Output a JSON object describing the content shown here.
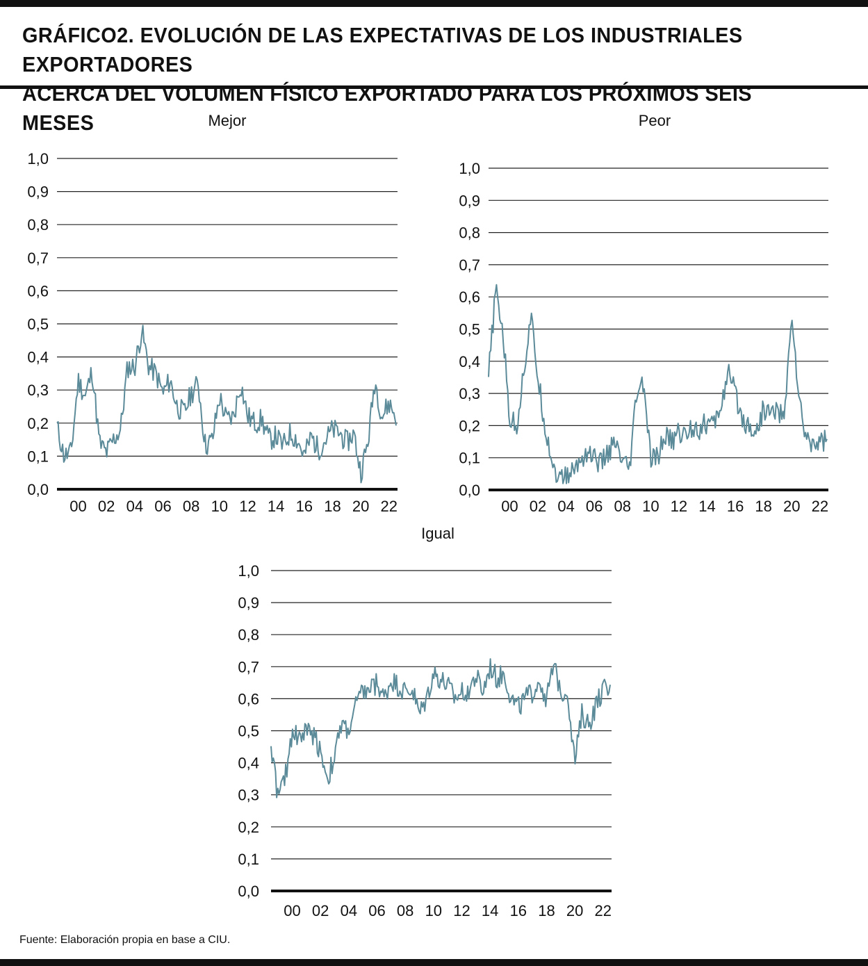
{
  "header": {
    "title_line1": "GRÁFICO2. EVOLUCIÓN DE LAS EXPECTATIVAS DE LOS INDUSTRIALES EXPORTADORES",
    "title_line2": "ACERCA DEL VOLUMEN FÍSICO EXPORTADO PARA LOS PRÓXIMOS SEIS MESES"
  },
  "footer": {
    "source": "Fuente: Elaboración propia en base a CIU."
  },
  "colors": {
    "line": "#5b8a99",
    "grid": "#222222",
    "axis": "#111111"
  },
  "chart_data": [
    {
      "type": "line",
      "title": "Mejor",
      "ylim": [
        0,
        1
      ],
      "yticks": [
        "0,0",
        "0,1",
        "0,2",
        "0,3",
        "0,4",
        "0,5",
        "0,6",
        "0,7",
        "0,8",
        "0,9",
        "1,0"
      ],
      "xticks": [
        "00",
        "02",
        "04",
        "06",
        "08",
        "10",
        "12",
        "14",
        "16",
        "18",
        "20",
        "22"
      ],
      "grid": true,
      "x": [
        1998.5,
        1999,
        1999.5,
        2000,
        2000.5,
        2001,
        2001.5,
        2002,
        2002.5,
        2003,
        2003.5,
        2004,
        2004.5,
        2005,
        2005.5,
        2006,
        2006.5,
        2007,
        2007.5,
        2008,
        2008.5,
        2009,
        2009.5,
        2010,
        2010.5,
        2011,
        2011.5,
        2012,
        2012.5,
        2013,
        2013.5,
        2014,
        2014.5,
        2015,
        2015.5,
        2016,
        2016.5,
        2017,
        2017.5,
        2018,
        2018.5,
        2019,
        2019.5,
        2020,
        2020.5,
        2021,
        2021.5,
        2022,
        2022.5
      ],
      "y": [
        0.19,
        0.1,
        0.11,
        0.33,
        0.28,
        0.36,
        0.14,
        0.11,
        0.15,
        0.18,
        0.37,
        0.37,
        0.48,
        0.37,
        0.35,
        0.29,
        0.33,
        0.25,
        0.23,
        0.29,
        0.32,
        0.13,
        0.15,
        0.28,
        0.21,
        0.22,
        0.32,
        0.22,
        0.2,
        0.21,
        0.15,
        0.16,
        0.13,
        0.17,
        0.15,
        0.1,
        0.16,
        0.12,
        0.15,
        0.18,
        0.17,
        0.14,
        0.17,
        0.05,
        0.14,
        0.33,
        0.22,
        0.26,
        0.22
      ]
    },
    {
      "type": "line",
      "title": "Peor",
      "ylim": [
        0,
        1
      ],
      "yticks": [
        "0,0",
        "0,1",
        "0,2",
        "0,3",
        "0,4",
        "0,5",
        "0,6",
        "0,7",
        "0,8",
        "0,9",
        "1,0"
      ],
      "xticks": [
        "00",
        "02",
        "04",
        "06",
        "08",
        "10",
        "12",
        "14",
        "16",
        "18",
        "20",
        "22"
      ],
      "grid": true,
      "x": [
        1998.5,
        1999,
        1999.5,
        2000,
        2000.5,
        2001,
        2001.5,
        2002,
        2002.5,
        2003,
        2003.5,
        2004,
        2004.5,
        2005,
        2005.5,
        2006,
        2006.5,
        2007,
        2007.5,
        2008,
        2008.5,
        2009,
        2009.5,
        2010,
        2010.5,
        2011,
        2011.5,
        2012,
        2012.5,
        2013,
        2013.5,
        2014,
        2014.5,
        2015,
        2015.5,
        2016,
        2016.5,
        2017,
        2017.5,
        2018,
        2018.5,
        2019,
        2019.5,
        2020,
        2020.5,
        2021,
        2021.5,
        2022,
        2022.5
      ],
      "y": [
        0.35,
        0.62,
        0.5,
        0.22,
        0.2,
        0.37,
        0.54,
        0.35,
        0.2,
        0.09,
        0.03,
        0.04,
        0.06,
        0.09,
        0.12,
        0.1,
        0.08,
        0.12,
        0.14,
        0.08,
        0.06,
        0.3,
        0.33,
        0.09,
        0.1,
        0.17,
        0.15,
        0.18,
        0.17,
        0.2,
        0.19,
        0.21,
        0.2,
        0.27,
        0.36,
        0.3,
        0.22,
        0.2,
        0.18,
        0.25,
        0.24,
        0.25,
        0.22,
        0.56,
        0.28,
        0.16,
        0.15,
        0.15,
        0.16
      ]
    },
    {
      "type": "line",
      "title": "Igual",
      "ylim": [
        0,
        1
      ],
      "yticks": [
        "0,0",
        "0,1",
        "0,2",
        "0,3",
        "0,4",
        "0,5",
        "0,6",
        "0,7",
        "0,8",
        "0,9",
        "1,0"
      ],
      "xticks": [
        "00",
        "02",
        "04",
        "06",
        "08",
        "10",
        "12",
        "14",
        "16",
        "18",
        "20",
        "22"
      ],
      "grid": true,
      "x": [
        1998.5,
        1999,
        1999.5,
        2000,
        2000.5,
        2001,
        2001.5,
        2002,
        2002.5,
        2003,
        2003.5,
        2004,
        2004.5,
        2005,
        2005.5,
        2006,
        2006.5,
        2007,
        2007.5,
        2008,
        2008.5,
        2009,
        2009.5,
        2010,
        2010.5,
        2011,
        2011.5,
        2012,
        2012.5,
        2013,
        2013.5,
        2014,
        2014.5,
        2015,
        2015.5,
        2016,
        2016.5,
        2017,
        2017.5,
        2018,
        2018.5,
        2019,
        2019.5,
        2020,
        2020.5,
        2021,
        2021.5,
        2022,
        2022.5
      ],
      "y": [
        0.46,
        0.29,
        0.35,
        0.5,
        0.48,
        0.5,
        0.49,
        0.44,
        0.35,
        0.42,
        0.52,
        0.5,
        0.58,
        0.62,
        0.63,
        0.65,
        0.6,
        0.66,
        0.64,
        0.62,
        0.63,
        0.55,
        0.6,
        0.68,
        0.66,
        0.64,
        0.6,
        0.62,
        0.63,
        0.67,
        0.62,
        0.7,
        0.66,
        0.68,
        0.6,
        0.57,
        0.6,
        0.62,
        0.66,
        0.6,
        0.7,
        0.63,
        0.62,
        0.4,
        0.55,
        0.52,
        0.58,
        0.63,
        0.62
      ]
    }
  ]
}
